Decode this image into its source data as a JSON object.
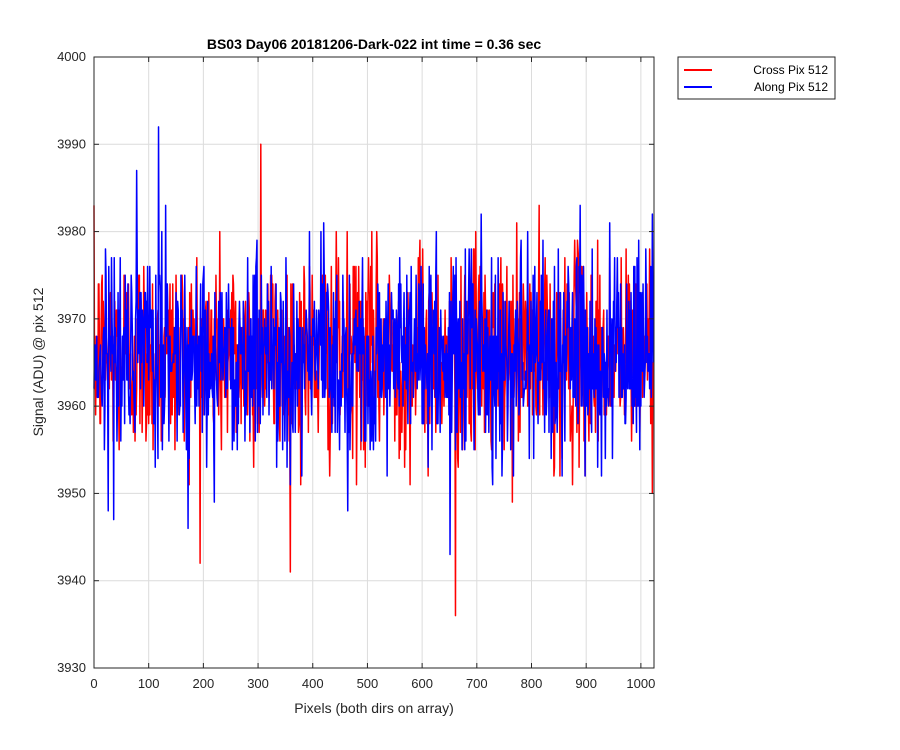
{
  "chart_data": {
    "type": "line",
    "title": "BS03 Day06 20181206-Dark-022 int time = 0.36 sec",
    "xlabel": "Pixels (both dirs on array)",
    "ylabel": "Signal (ADU) @ pix 512",
    "xlim": [
      0,
      1024
    ],
    "ylim": [
      3930,
      4000
    ],
    "xticks": [
      0,
      100,
      200,
      300,
      400,
      500,
      600,
      700,
      800,
      900,
      1000
    ],
    "yticks": [
      3930,
      3940,
      3950,
      3960,
      3970,
      3980,
      3990,
      4000
    ],
    "grid": true,
    "legend_position": "outside-top-right",
    "num_points": 1024,
    "series": [
      {
        "name": "Cross Pix 512",
        "color": "#ff0000",
        "mean": 3966,
        "noise_std": 6,
        "min_value": 3936,
        "max_value": 3990
      },
      {
        "name": "Along Pix 512",
        "color": "#0000ff",
        "mean": 3966,
        "noise_std": 6,
        "min_value": 3943,
        "max_value": 3992
      }
    ]
  }
}
